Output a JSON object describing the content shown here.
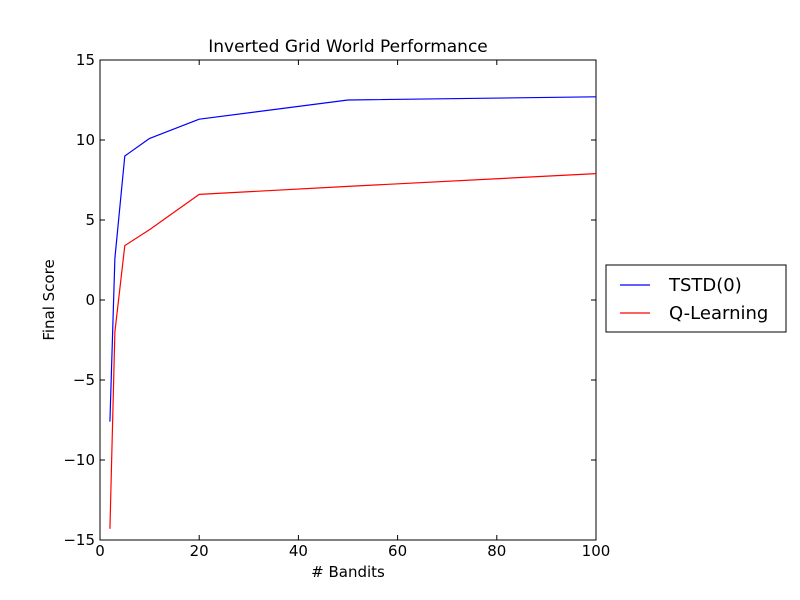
{
  "chart_data": {
    "type": "line",
    "title": "Inverted Grid World Performance",
    "xlabel": "# Bandits",
    "ylabel": "Final Score",
    "xlim": [
      0,
      100
    ],
    "ylim": [
      -15,
      15
    ],
    "xticks": [
      0,
      20,
      40,
      60,
      80,
      100
    ],
    "xtick_labels": [
      "0",
      "20",
      "40",
      "60",
      "80",
      "100"
    ],
    "yticks": [
      -15,
      -10,
      -5,
      0,
      5,
      10,
      15
    ],
    "ytick_labels": [
      "−15",
      "−10",
      "−5",
      "0",
      "5",
      "10",
      "15"
    ],
    "grid": false,
    "legend_position": "outside-right",
    "series": [
      {
        "name": "TSTD(0)",
        "color": "#0000ff",
        "x": [
          2,
          3,
          5,
          10,
          20,
          50,
          100
        ],
        "y": [
          -7.6,
          2.6,
          9.0,
          10.1,
          11.3,
          12.5,
          12.7
        ]
      },
      {
        "name": "Q-Learning",
        "color": "#ff0000",
        "x": [
          2,
          3,
          5,
          10,
          20,
          50,
          100
        ],
        "y": [
          -14.3,
          -2.0,
          3.4,
          4.4,
          6.6,
          7.1,
          7.9
        ]
      }
    ]
  }
}
